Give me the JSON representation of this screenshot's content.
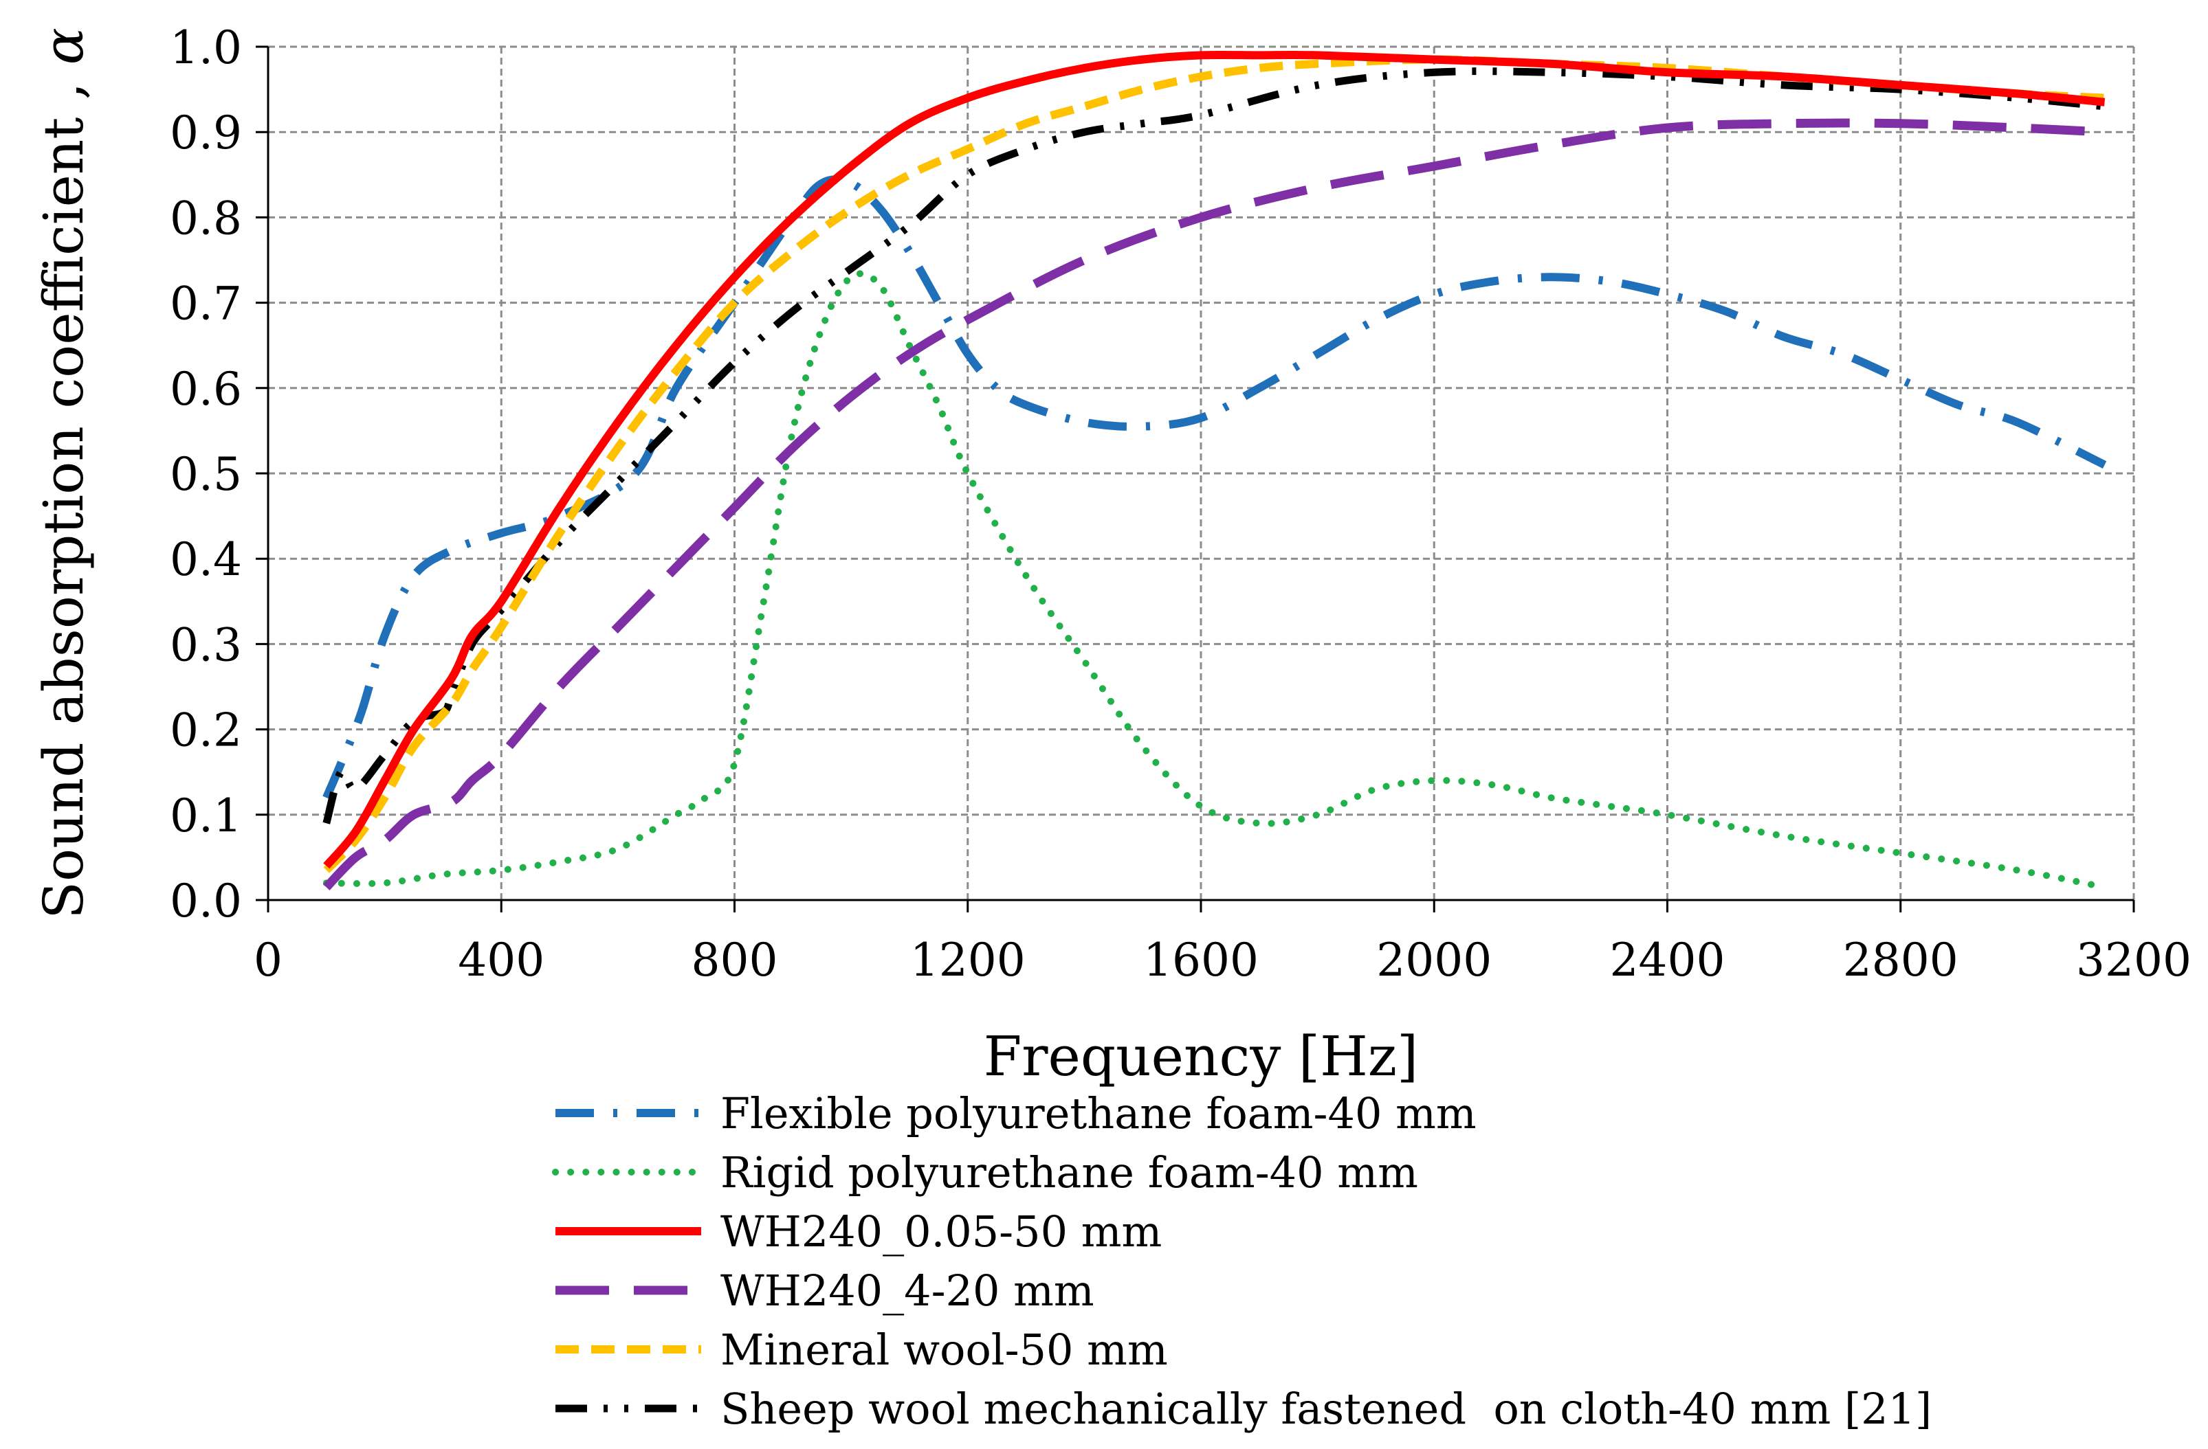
{
  "chart_data": {
    "type": "line",
    "title": "",
    "xlabel": "Frequency [Hz]",
    "ylabel": "Sound absorption coefficient ,",
    "ylabel_symbol": "α",
    "xlim": [
      0,
      3200
    ],
    "ylim": [
      0.0,
      1.0
    ],
    "xticks": [
      0,
      400,
      800,
      1200,
      1600,
      2000,
      2400,
      2800,
      3200
    ],
    "xtick_labels": [
      "0",
      "400",
      "800",
      "1200",
      "1600",
      "2000",
      "2400",
      "2800",
      "3200"
    ],
    "yticks": [
      0.0,
      0.1,
      0.2,
      0.3,
      0.4,
      0.5,
      0.6,
      0.7,
      0.8,
      0.9,
      1.0
    ],
    "ytick_labels": [
      "0.0",
      "0.1",
      "0.2",
      "0.3",
      "0.4",
      "0.5",
      "0.6",
      "0.7",
      "0.8",
      "0.9",
      "1.0"
    ],
    "grid": true,
    "legend_position": "bottom",
    "series": [
      {
        "name": "Flexible polyurethane foam-40 mm",
        "color": "#1F6FB9",
        "style": "dash-dot",
        "x": [
          100,
          125,
          160,
          200,
          250,
          315,
          400,
          500,
          630,
          700,
          800,
          900,
          950,
          1000,
          1050,
          1100,
          1150,
          1200,
          1250,
          1300,
          1400,
          1500,
          1600,
          1700,
          1800,
          1900,
          2000,
          2100,
          2200,
          2300,
          2400,
          2500,
          2600,
          2700,
          2800,
          2900,
          3000,
          3150
        ],
        "y": [
          0.12,
          0.16,
          0.22,
          0.31,
          0.38,
          0.41,
          0.43,
          0.45,
          0.5,
          0.6,
          0.7,
          0.8,
          0.84,
          0.84,
          0.81,
          0.76,
          0.7,
          0.64,
          0.6,
          0.58,
          0.56,
          0.555,
          0.565,
          0.6,
          0.64,
          0.68,
          0.71,
          0.725,
          0.73,
          0.725,
          0.71,
          0.69,
          0.66,
          0.64,
          0.61,
          0.58,
          0.56,
          0.51
        ]
      },
      {
        "name": "Rigid polyurethane foam-40 mm",
        "color": "#22B04A",
        "style": "dotted",
        "x": [
          100,
          200,
          300,
          400,
          500,
          600,
          700,
          750,
          800,
          850,
          900,
          950,
          1000,
          1050,
          1100,
          1150,
          1200,
          1300,
          1400,
          1500,
          1600,
          1700,
          1800,
          1900,
          2000,
          2100,
          2200,
          2300,
          2400,
          2600,
          2800,
          3000,
          3150
        ],
        "y": [
          0.02,
          0.02,
          0.03,
          0.035,
          0.045,
          0.06,
          0.1,
          0.12,
          0.16,
          0.35,
          0.55,
          0.67,
          0.73,
          0.72,
          0.65,
          0.58,
          0.5,
          0.38,
          0.28,
          0.18,
          0.11,
          0.09,
          0.1,
          0.13,
          0.14,
          0.135,
          0.12,
          0.11,
          0.1,
          0.075,
          0.055,
          0.035,
          0.015
        ]
      },
      {
        "name": "WH240_0.05-50 mm",
        "color": "#FF0000",
        "style": "solid",
        "x": [
          100,
          150,
          200,
          250,
          315,
          350,
          400,
          500,
          600,
          700,
          800,
          900,
          1000,
          1100,
          1200,
          1300,
          1400,
          1500,
          1600,
          1700,
          1800,
          2000,
          2200,
          2400,
          2600,
          2800,
          3000,
          3150
        ],
        "y": [
          0.04,
          0.08,
          0.14,
          0.2,
          0.26,
          0.31,
          0.35,
          0.46,
          0.56,
          0.65,
          0.73,
          0.8,
          0.86,
          0.91,
          0.94,
          0.96,
          0.975,
          0.985,
          0.99,
          0.99,
          0.99,
          0.985,
          0.98,
          0.97,
          0.965,
          0.955,
          0.945,
          0.935
        ]
      },
      {
        "name": "WH240_4-20 mm",
        "color": "#7F2FA6",
        "style": "long-dash",
        "x": [
          100,
          150,
          200,
          250,
          315,
          350,
          400,
          500,
          600,
          700,
          800,
          900,
          1000,
          1100,
          1200,
          1400,
          1600,
          1800,
          2000,
          2200,
          2400,
          2600,
          2800,
          3000,
          3150
        ],
        "y": [
          0.015,
          0.05,
          0.07,
          0.1,
          0.115,
          0.14,
          0.17,
          0.25,
          0.32,
          0.39,
          0.46,
          0.53,
          0.59,
          0.64,
          0.68,
          0.75,
          0.8,
          0.835,
          0.86,
          0.885,
          0.905,
          0.91,
          0.91,
          0.905,
          0.9
        ]
      },
      {
        "name": "Mineral wool-50 mm",
        "color": "#FFC000",
        "style": "dashed",
        "x": [
          100,
          150,
          200,
          250,
          315,
          350,
          400,
          500,
          600,
          700,
          800,
          900,
          1000,
          1100,
          1200,
          1300,
          1400,
          1500,
          1600,
          1700,
          1800,
          2000,
          2200,
          2400,
          2600,
          2800,
          3000,
          3150
        ],
        "y": [
          0.035,
          0.07,
          0.12,
          0.18,
          0.23,
          0.27,
          0.32,
          0.43,
          0.53,
          0.62,
          0.7,
          0.76,
          0.81,
          0.85,
          0.88,
          0.91,
          0.93,
          0.95,
          0.965,
          0.975,
          0.98,
          0.985,
          0.98,
          0.975,
          0.965,
          0.955,
          0.945,
          0.94
        ]
      },
      {
        "name": "Sheep wool mechanically fastened  on cloth-40 mm [21]",
        "color": "#000000",
        "style": "dash-dot-dot",
        "x": [
          100,
          125,
          150,
          200,
          250,
          300,
          315,
          350,
          400,
          500,
          600,
          700,
          800,
          900,
          1000,
          1100,
          1200,
          1300,
          1400,
          1500,
          1600,
          1800,
          2000,
          2200,
          2400,
          2600,
          2800,
          3000,
          3150
        ],
        "y": [
          0.09,
          0.15,
          0.13,
          0.17,
          0.21,
          0.22,
          0.24,
          0.3,
          0.34,
          0.42,
          0.49,
          0.56,
          0.63,
          0.69,
          0.74,
          0.79,
          0.85,
          0.88,
          0.9,
          0.91,
          0.92,
          0.955,
          0.97,
          0.97,
          0.965,
          0.955,
          0.95,
          0.94,
          0.93
        ]
      }
    ]
  }
}
